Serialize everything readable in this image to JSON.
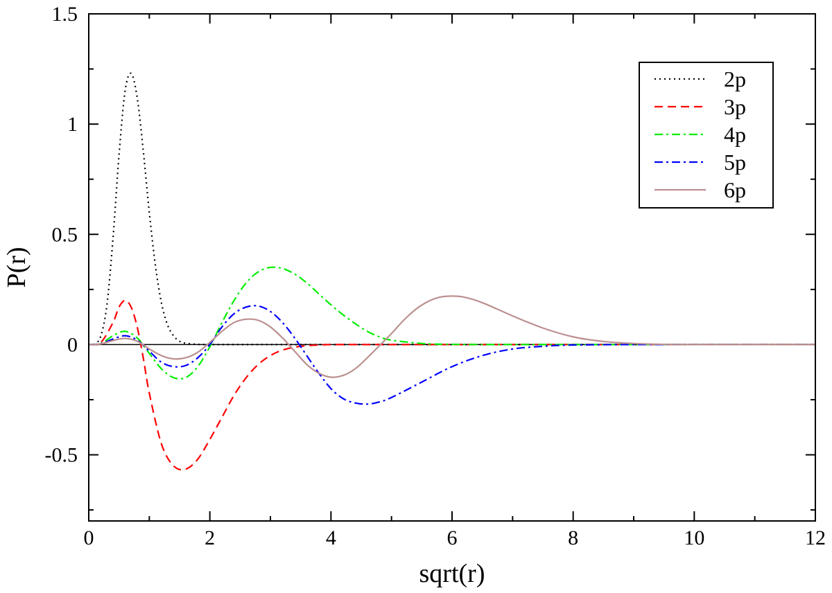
{
  "chart_data": {
    "type": "line",
    "title": "",
    "xlabel": "sqrt(r)",
    "ylabel": "P(r)",
    "xlim": [
      0,
      12
    ],
    "ylim": [
      -0.8,
      1.5
    ],
    "xticks": [
      0,
      2,
      4,
      6,
      8,
      10,
      12
    ],
    "xtick_labels": [
      "0",
      "2",
      "4",
      "6",
      "8",
      "10",
      "12"
    ],
    "yticks": [
      -0.5,
      0,
      0.5,
      1,
      1.5
    ],
    "ytick_labels": [
      "-0.5",
      "0",
      "0.5",
      "1",
      "1.5"
    ],
    "x_minor_step": 1,
    "y_minor_step": 0.25,
    "grid": false,
    "zero_line": true,
    "legend_position": "top-right",
    "series": [
      {
        "name": "2p",
        "color": "#000000",
        "dash": "dotted",
        "x": [
          0,
          0.1,
          0.2,
          0.3,
          0.4,
          0.5,
          0.6,
          0.7,
          0.8,
          0.9,
          1.0,
          1.1,
          1.2,
          1.3,
          1.4,
          1.5,
          1.6,
          1.8,
          2.0,
          2.5,
          3,
          4,
          6,
          8,
          10,
          12
        ],
        "values": [
          0,
          0.003,
          0.04,
          0.18,
          0.48,
          0.86,
          1.15,
          1.23,
          1.12,
          0.88,
          0.6,
          0.36,
          0.19,
          0.09,
          0.04,
          0.015,
          0.006,
          0.001,
          0,
          0,
          0,
          0,
          0,
          0,
          0,
          0
        ]
      },
      {
        "name": "3p",
        "color": "#ff0000",
        "dash": "dashed",
        "x": [
          0,
          0.2,
          0.4,
          0.5,
          0.6,
          0.7,
          0.8,
          0.9,
          1.0,
          1.2,
          1.4,
          1.6,
          1.8,
          2.0,
          2.2,
          2.4,
          2.6,
          2.8,
          3.0,
          3.2,
          3.4,
          3.6,
          3.8,
          4.0,
          4.5,
          6,
          8,
          10,
          12
        ],
        "values": [
          0,
          0.01,
          0.1,
          0.17,
          0.2,
          0.17,
          0.08,
          -0.06,
          -0.22,
          -0.45,
          -0.55,
          -0.565,
          -0.52,
          -0.43,
          -0.33,
          -0.23,
          -0.15,
          -0.09,
          -0.05,
          -0.025,
          -0.012,
          -0.005,
          -0.002,
          0,
          0,
          0,
          0,
          0,
          0
        ]
      },
      {
        "name": "4p",
        "color": "#00ee00",
        "dash": "dashdot",
        "x": [
          0,
          0.2,
          0.4,
          0.6,
          0.8,
          1.0,
          1.2,
          1.4,
          1.6,
          1.8,
          2.0,
          2.2,
          2.4,
          2.6,
          2.8,
          3.0,
          3.2,
          3.4,
          3.6,
          3.8,
          4.0,
          4.2,
          4.4,
          4.6,
          4.8,
          5.0,
          5.5,
          6.0,
          7.0,
          8.0,
          10,
          12
        ],
        "values": [
          0,
          0.005,
          0.04,
          0.06,
          0.03,
          -0.04,
          -0.11,
          -0.15,
          -0.15,
          -0.1,
          -0.01,
          0.1,
          0.2,
          0.28,
          0.33,
          0.35,
          0.345,
          0.32,
          0.28,
          0.23,
          0.18,
          0.135,
          0.095,
          0.06,
          0.035,
          0.02,
          0.005,
          0.001,
          0,
          0,
          0,
          0
        ]
      },
      {
        "name": "5p",
        "color": "#0000ff",
        "dash": "dashdot",
        "x": [
          0,
          0.2,
          0.4,
          0.6,
          0.8,
          1.0,
          1.2,
          1.4,
          1.6,
          1.8,
          2.0,
          2.2,
          2.4,
          2.6,
          2.8,
          3.0,
          3.2,
          3.4,
          3.6,
          3.8,
          4.0,
          4.2,
          4.4,
          4.6,
          4.8,
          5.0,
          5.5,
          6.0,
          6.5,
          7.0,
          7.5,
          8.0,
          9.0,
          10,
          12
        ],
        "values": [
          0,
          0.004,
          0.025,
          0.04,
          0.02,
          -0.03,
          -0.08,
          -0.1,
          -0.095,
          -0.06,
          0,
          0.08,
          0.14,
          0.17,
          0.175,
          0.15,
          0.1,
          0.03,
          -0.05,
          -0.13,
          -0.2,
          -0.245,
          -0.265,
          -0.27,
          -0.26,
          -0.24,
          -0.17,
          -0.1,
          -0.05,
          -0.02,
          -0.008,
          -0.002,
          0,
          0,
          0
        ]
      },
      {
        "name": "6p",
        "color": "#bc8f8f",
        "dash": "solid",
        "x": [
          0,
          0.2,
          0.4,
          0.6,
          0.8,
          1.0,
          1.2,
          1.4,
          1.6,
          1.8,
          2.0,
          2.2,
          2.4,
          2.6,
          2.8,
          3.0,
          3.2,
          3.4,
          3.6,
          3.8,
          4.0,
          4.2,
          4.4,
          4.6,
          4.8,
          5.0,
          5.2,
          5.4,
          5.6,
          5.8,
          6.0,
          6.2,
          6.5,
          7.0,
          7.5,
          8.0,
          8.5,
          9.0,
          9.5,
          10,
          12
        ],
        "values": [
          0,
          0.003,
          0.018,
          0.028,
          0.015,
          -0.02,
          -0.05,
          -0.065,
          -0.06,
          -0.035,
          0.01,
          0.06,
          0.1,
          0.115,
          0.11,
          0.08,
          0.03,
          -0.03,
          -0.09,
          -0.13,
          -0.148,
          -0.14,
          -0.11,
          -0.06,
          -0.005,
          0.05,
          0.11,
          0.16,
          0.195,
          0.215,
          0.22,
          0.215,
          0.19,
          0.13,
          0.075,
          0.035,
          0.014,
          0.005,
          0.001,
          0,
          0
        ]
      }
    ]
  }
}
